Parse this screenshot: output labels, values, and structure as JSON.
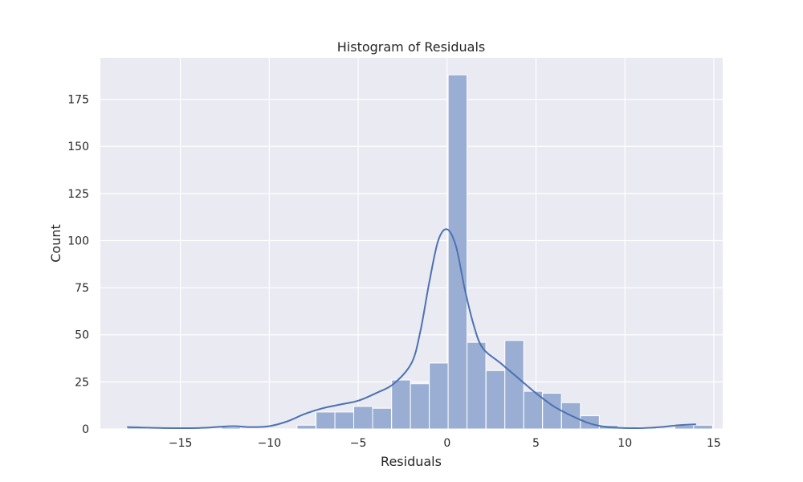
{
  "chart_data": {
    "type": "bar",
    "title": "Histogram of Residuals",
    "xlabel": "Residuals",
    "ylabel": "Count",
    "xlim": [
      -19.5,
      15.5
    ],
    "ylim": [
      0,
      197
    ],
    "x_ticks": [
      -15,
      -10,
      -5,
      0,
      5,
      10,
      15
    ],
    "x_tick_labels": [
      "−15",
      "−10",
      "−5",
      "0",
      "5",
      "10",
      "15"
    ],
    "y_ticks": [
      0,
      25,
      50,
      75,
      100,
      125,
      150,
      175
    ],
    "y_tick_labels": [
      "0",
      "25",
      "50",
      "75",
      "100",
      "125",
      "150",
      "175"
    ],
    "grid": true,
    "legend": "none",
    "colors": {
      "bar_fill": "#9aaed4",
      "bar_edge": "#ffffff",
      "kde_line": "#4c72b0",
      "plot_background": "#eaeaf2",
      "grid": "#ffffff"
    },
    "bins": {
      "edges": [
        -18.0,
        -16.94,
        -15.87,
        -14.81,
        -13.75,
        -12.69,
        -11.62,
        -10.56,
        -9.5,
        -8.44,
        -7.37,
        -6.31,
        -5.25,
        -4.19,
        -3.12,
        -2.06,
        -1.0,
        0.06,
        1.12,
        2.19,
        3.25,
        4.31,
        5.37,
        6.44,
        7.5,
        8.56,
        9.62,
        10.69,
        11.75,
        12.81,
        13.87
      ],
      "counts": [
        1,
        0,
        0,
        0,
        0,
        1,
        0,
        0,
        0,
        2,
        9,
        9,
        12,
        11,
        26,
        24,
        35,
        188,
        46,
        31,
        47,
        20,
        19,
        14,
        7,
        2,
        0,
        1,
        0,
        2,
        2
      ]
    },
    "kde": {
      "x": [
        -18,
        -16,
        -14,
        -13,
        -12,
        -11,
        -10,
        -9,
        -8,
        -7,
        -6,
        -5,
        -4,
        -3,
        -2,
        -1.5,
        -1,
        -0.5,
        0,
        0.5,
        1,
        1.5,
        2,
        3,
        4,
        5,
        6,
        7,
        8,
        9,
        10,
        11,
        12,
        13,
        14
      ],
      "y": [
        1,
        0.5,
        0.5,
        1,
        1.5,
        1,
        1.5,
        4,
        8,
        11,
        13,
        15,
        19,
        24,
        35,
        52,
        78,
        100,
        106,
        97,
        74,
        55,
        43,
        35,
        27,
        19,
        12,
        7,
        3,
        1,
        0.5,
        0.5,
        1,
        2,
        2.5
      ]
    }
  }
}
